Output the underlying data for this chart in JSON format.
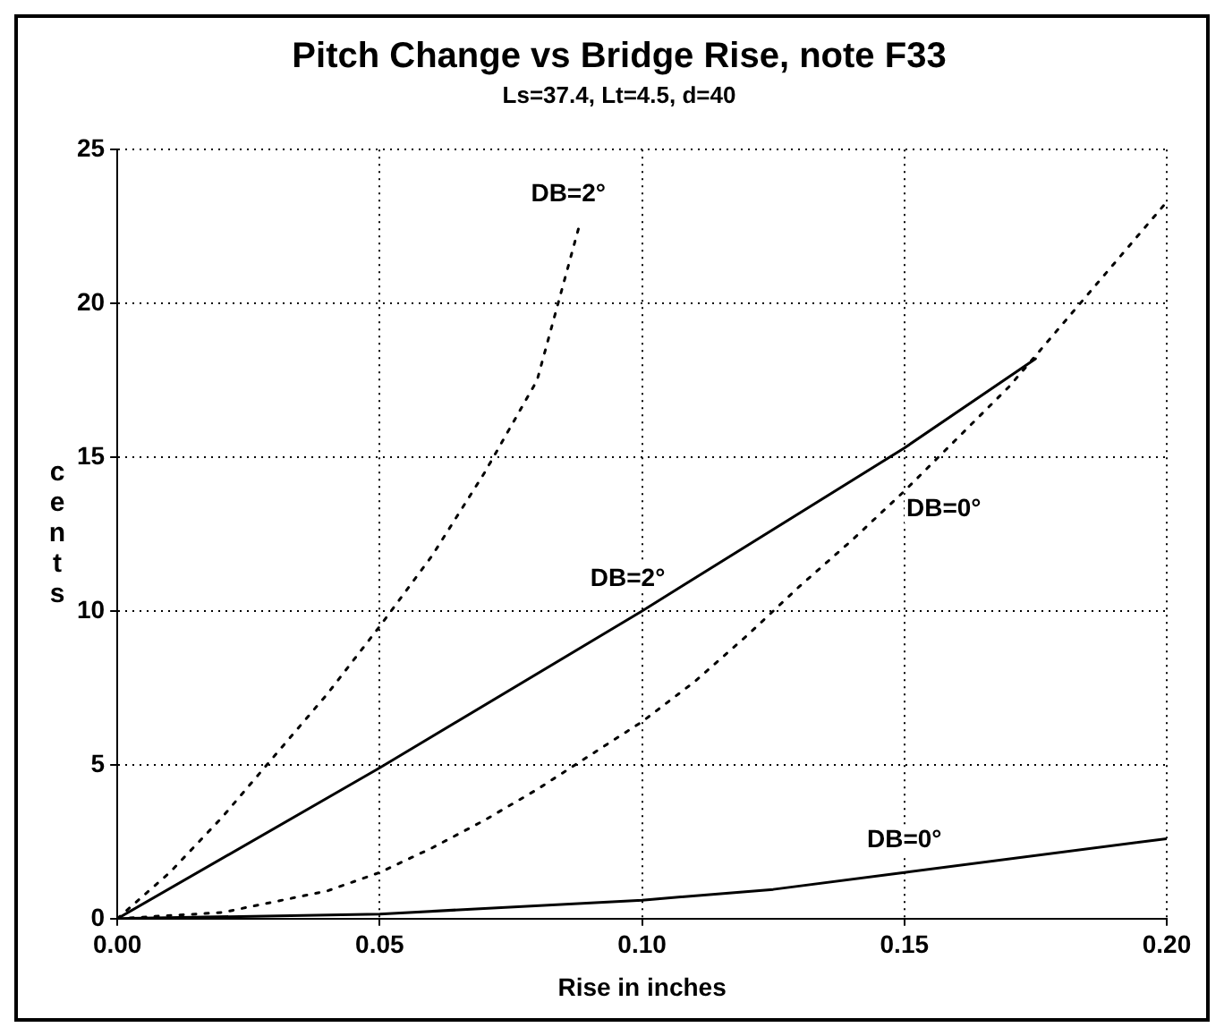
{
  "chart_data": {
    "type": "line",
    "title": "Pitch Change vs Bridge Rise, note F33",
    "subtitle": "Ls=37.4, Lt=4.5, d=40",
    "xlabel": "Rise in inches",
    "ylabel": "cents",
    "xlim": [
      0,
      0.2
    ],
    "xticks": [
      {
        "value": 0,
        "label": "0.00"
      },
      0.05,
      {
        "value": 0.1,
        "label": "0.10"
      },
      0.15,
      {
        "value": 0.2,
        "label": "0.20"
      }
    ],
    "ylim": [
      0,
      25
    ],
    "yticks": [
      0,
      5,
      10,
      15,
      20,
      25
    ],
    "grid": true,
    "legend": false,
    "marker": "none",
    "series": [
      {
        "color": "#000000",
        "line_style": "solid",
        "x": [
          0,
          0.05,
          0.1,
          0.15,
          0.175
        ],
        "values": [
          0,
          4.9,
          10,
          15.3,
          18.2
        ]
      },
      {
        "color": "#000000",
        "line_style": "solid",
        "x": [
          0,
          0.05,
          0.1,
          0.125,
          0.15,
          0.2
        ],
        "values": [
          0,
          0.15,
          0.6,
          0.95,
          1.5,
          2.6
        ]
      },
      {
        "color": "#000000",
        "line_style": "dotted",
        "x": [
          0,
          0.01,
          0.02,
          0.03,
          0.04,
          0.05,
          0.06,
          0.07,
          0.08,
          0.088
        ],
        "values": [
          0,
          1.5,
          3.3,
          5.3,
          7.3,
          9.5,
          11.8,
          14.5,
          17.5,
          22.5
        ]
      },
      {
        "color": "#000000",
        "line_style": "dotted",
        "x": [
          0,
          0.02,
          0.04,
          0.05,
          0.06,
          0.07,
          0.08,
          0.09,
          0.1,
          0.11,
          0.12,
          0.13,
          0.14,
          0.15,
          0.16,
          0.17,
          0.18,
          0.19,
          0.2
        ],
        "values": [
          0,
          0.2,
          0.9,
          1.5,
          2.3,
          3.2,
          4.2,
          5.3,
          6.4,
          7.7,
          9.2,
          10.8,
          12.3,
          13.9,
          15.6,
          17.3,
          19.3,
          21.3,
          23.3
        ]
      }
    ],
    "annotations": [
      {
        "text": "DB=2°",
        "x": 0.088,
        "y": 22.5
      },
      {
        "text": "DB=2°",
        "x": 0.1,
        "y": 10
      },
      {
        "text": "DB=0°",
        "x": 0.15,
        "y": 13.9
      },
      {
        "text": "DB=0°",
        "x": 0.15,
        "y": 1.5
      }
    ]
  }
}
